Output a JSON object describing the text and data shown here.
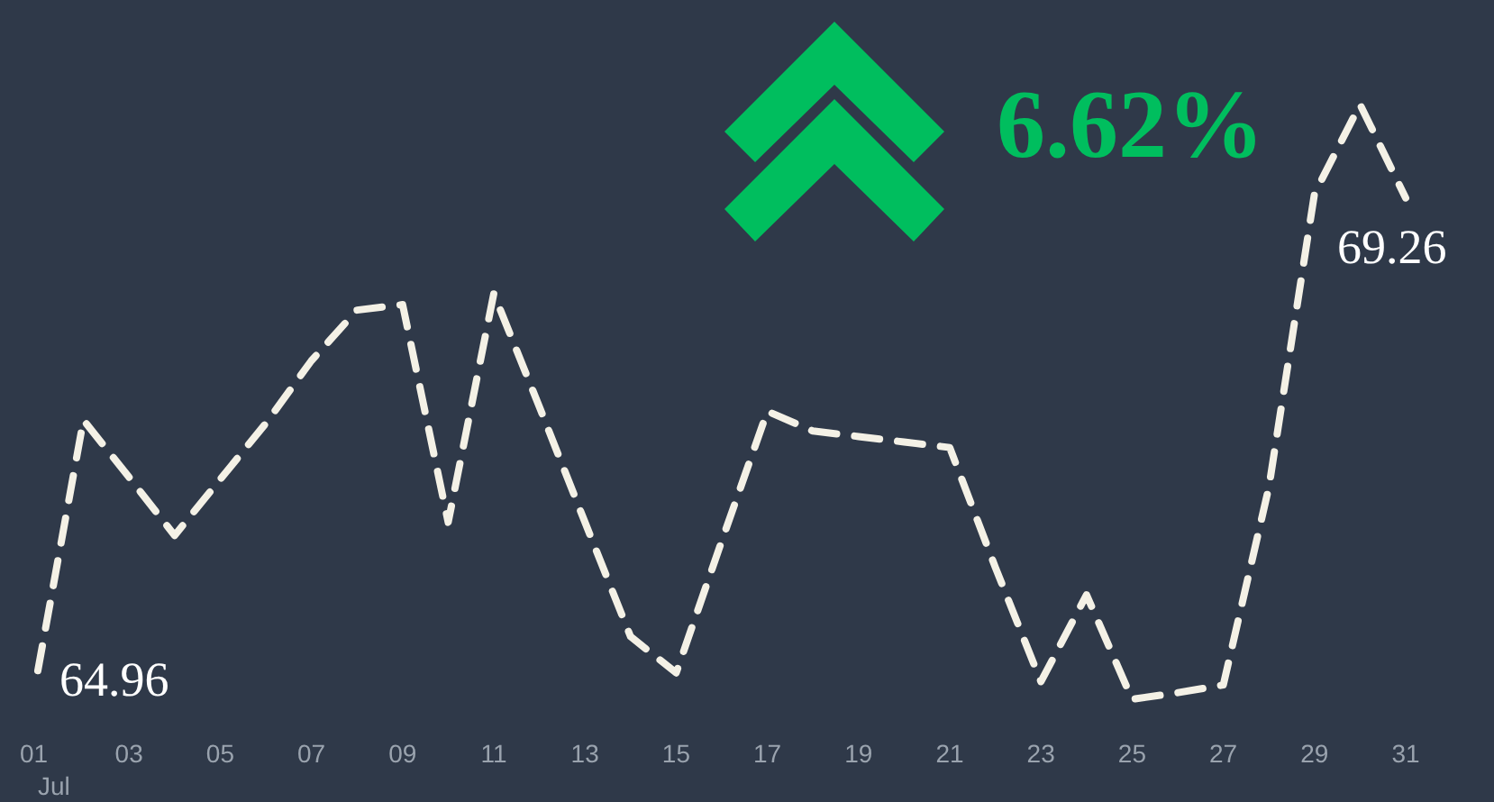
{
  "chart_data": {
    "type": "line",
    "x": [
      "--07-01",
      "--07-02",
      "--07-03",
      "--07-04",
      "--07-05",
      "--07-06",
      "--07-07",
      "--07-08",
      "--07-09",
      "--07-10",
      "--07-11",
      "--07-12",
      "--07-13",
      "--07-14",
      "--07-15",
      "--07-16",
      "--07-17",
      "--07-18",
      "--07-19",
      "--07-20",
      "--07-21",
      "--07-22",
      "--07-23",
      "--07-24",
      "--07-25",
      "--07-26",
      "--07-27",
      "--07-28",
      "--07-29",
      "--07-30",
      "--07-31"
    ],
    "series": [
      {
        "color": "#f4f1e6",
        "values": [
          64.96,
          67.24,
          66.72,
          66.19,
          66.7,
          67.21,
          67.78,
          68.24,
          68.29,
          66.31,
          68.39,
          67.36,
          66.31,
          65.27,
          64.94,
          66.14,
          67.32,
          67.14,
          67.09,
          67.04,
          66.99,
          65.9,
          64.86,
          65.65,
          64.7,
          64.76,
          64.83,
          66.63,
          69.3,
          70.11,
          69.26
        ],
        "value_labels": [
          "64.96",
          null,
          null,
          null,
          null,
          null,
          null,
          null,
          null,
          null,
          null,
          null,
          null,
          null,
          null,
          null,
          null,
          null,
          null,
          null,
          null,
          null,
          null,
          null,
          null,
          null,
          null,
          null,
          null,
          null,
          "69.26"
        ]
      }
    ],
    "xticks": [
      {
        "value": "--07-01",
        "label": "01\nJul"
      },
      {
        "value": "--07-03",
        "label": "03"
      },
      {
        "value": "--07-05",
        "label": "05"
      },
      {
        "value": "--07-07",
        "label": "07"
      },
      {
        "value": "--07-09",
        "label": "09"
      },
      {
        "value": "--07-11",
        "label": "11"
      },
      {
        "value": "--07-13",
        "label": "13"
      },
      {
        "value": "--07-15",
        "label": "15"
      },
      {
        "value": "--07-17",
        "label": "17"
      },
      {
        "value": "--07-19",
        "label": "19"
      },
      {
        "value": "--07-21",
        "label": "21"
      },
      {
        "value": "--07-23",
        "label": "23"
      },
      {
        "value": "--07-25",
        "label": "25"
      },
      {
        "value": "--07-27",
        "label": "27"
      },
      {
        "value": "--07-29",
        "label": "29"
      },
      {
        "value": "--07-31",
        "label": "31"
      }
    ],
    "xlim": [
      "--07-01",
      "--07-31"
    ],
    "line_style": "dashed",
    "grid": false,
    "annotations": [
      "6.62%"
    ]
  }
}
